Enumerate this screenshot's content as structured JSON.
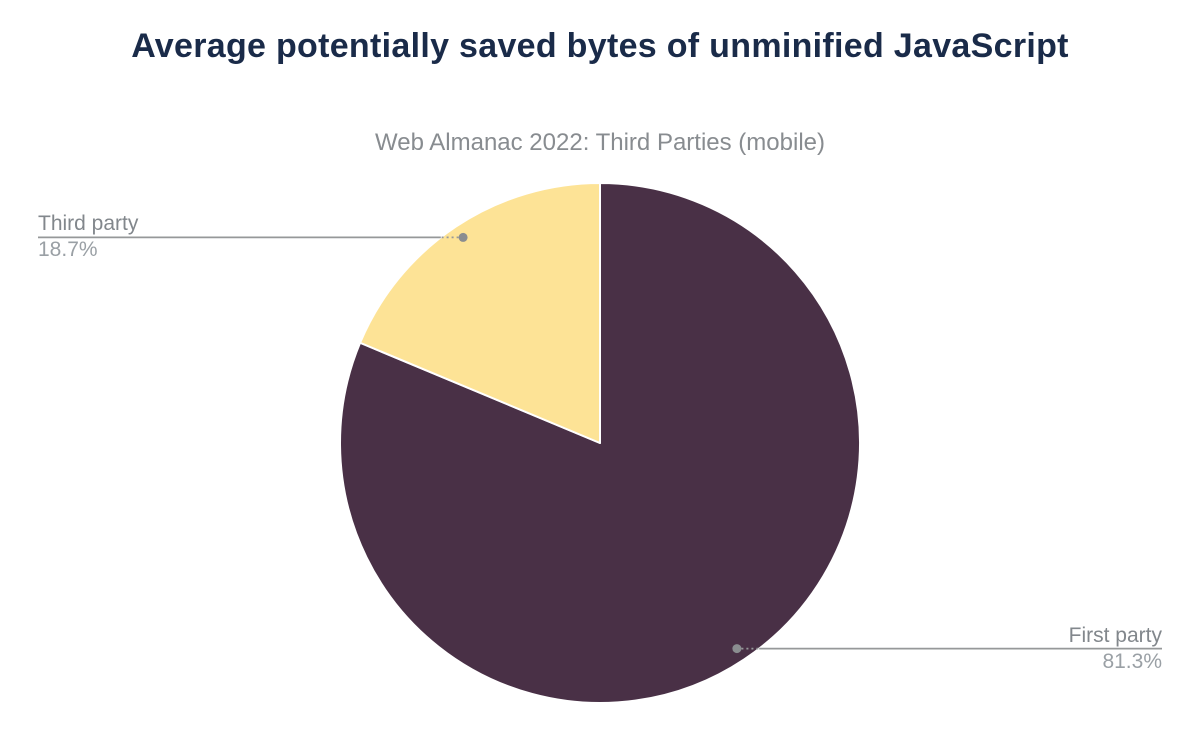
{
  "chart_data": {
    "type": "pie",
    "title": "Average potentially saved bytes of unminified JavaScript",
    "subtitle": "Web Almanac 2022: Third Parties (mobile)",
    "start_angle_deg": 0,
    "direction": "clockwise",
    "legend": "none",
    "slices": [
      {
        "label": "First party",
        "value": 81.3,
        "display": "81.3%",
        "color": "#493046"
      },
      {
        "label": "Third party",
        "value": 18.7,
        "display": "18.7%",
        "color": "#fde396"
      }
    ],
    "slice_border_color": "#ffffff",
    "connector_color": "#969899",
    "marker_color": "#8a8d90",
    "title_color": "#1a2b49",
    "subtitle_color": "#888c90",
    "label_color": "#82878c",
    "percent_color": "#9aa0a5"
  }
}
